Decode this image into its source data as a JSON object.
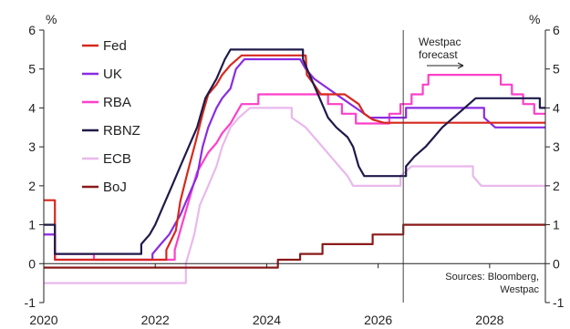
{
  "chart_data": {
    "type": "line",
    "title": "",
    "xlabel": "",
    "ylabel_left": "%",
    "ylabel_right": "%",
    "xlim": [
      2020.0,
      2029.0
    ],
    "ylim": [
      -1,
      6
    ],
    "x_ticks": [
      2020,
      2022,
      2024,
      2026,
      2028
    ],
    "y_ticks": [
      -1,
      0,
      1,
      2,
      3,
      4,
      5,
      6
    ],
    "grid": false,
    "legend_position": "left",
    "forecast_divider_x": 2026.45,
    "annotation": {
      "text_line1": "Westpac",
      "text_line2": "forecast"
    },
    "source_line1": "Sources: Bloomberg,",
    "source_line2": "Westpac",
    "series": [
      {
        "name": "Fed",
        "color": "#d7281e",
        "points": [
          [
            2020.0,
            1.63
          ],
          [
            2020.2,
            1.63
          ],
          [
            2020.2,
            0.1
          ],
          [
            2022.2,
            0.1
          ],
          [
            2022.2,
            0.35
          ],
          [
            2022.37,
            0.85
          ],
          [
            2022.45,
            1.6
          ],
          [
            2022.58,
            2.35
          ],
          [
            2022.72,
            3.1
          ],
          [
            2022.85,
            3.85
          ],
          [
            2022.95,
            4.35
          ],
          [
            2023.1,
            4.6
          ],
          [
            2023.2,
            4.85
          ],
          [
            2023.35,
            5.1
          ],
          [
            2023.55,
            5.35
          ],
          [
            2024.7,
            5.35
          ],
          [
            2024.72,
            4.85
          ],
          [
            2024.85,
            4.6
          ],
          [
            2024.97,
            4.35
          ],
          [
            2025.4,
            4.35
          ],
          [
            2025.65,
            4.1
          ],
          [
            2025.75,
            3.85
          ],
          [
            2025.9,
            3.7
          ],
          [
            2026.1,
            3.62
          ],
          [
            2029.0,
            3.62
          ]
        ]
      },
      {
        "name": "UK",
        "color": "#8a2be2",
        "points": [
          [
            2020.0,
            0.75
          ],
          [
            2020.2,
            0.75
          ],
          [
            2020.2,
            0.1
          ],
          [
            2021.95,
            0.1
          ],
          [
            2021.95,
            0.25
          ],
          [
            2022.1,
            0.5
          ],
          [
            2022.25,
            0.75
          ],
          [
            2022.35,
            1.0
          ],
          [
            2022.45,
            1.25
          ],
          [
            2022.6,
            1.75
          ],
          [
            2022.75,
            2.25
          ],
          [
            2022.85,
            3.0
          ],
          [
            2022.95,
            3.5
          ],
          [
            2023.1,
            4.0
          ],
          [
            2023.2,
            4.25
          ],
          [
            2023.35,
            4.5
          ],
          [
            2023.45,
            5.0
          ],
          [
            2023.6,
            5.25
          ],
          [
            2024.6,
            5.25
          ],
          [
            2024.7,
            5.0
          ],
          [
            2024.85,
            4.75
          ],
          [
            2025.1,
            4.5
          ],
          [
            2025.35,
            4.25
          ],
          [
            2025.6,
            4.0
          ],
          [
            2025.85,
            3.75
          ],
          [
            2026.5,
            3.75
          ],
          [
            2026.5,
            4.0
          ],
          [
            2027.9,
            4.0
          ],
          [
            2027.9,
            3.75
          ],
          [
            2028.1,
            3.5
          ],
          [
            2029.0,
            3.5
          ]
        ]
      },
      {
        "name": "RBA",
        "color": "#ff3fc8",
        "points": [
          [
            2020.0,
            0.75
          ],
          [
            2020.2,
            0.75
          ],
          [
            2020.2,
            0.25
          ],
          [
            2020.9,
            0.25
          ],
          [
            2020.9,
            0.1
          ],
          [
            2022.35,
            0.1
          ],
          [
            2022.35,
            0.35
          ],
          [
            2022.45,
            0.85
          ],
          [
            2022.55,
            1.35
          ],
          [
            2022.65,
            1.85
          ],
          [
            2022.75,
            2.35
          ],
          [
            2022.85,
            2.6
          ],
          [
            2022.95,
            2.85
          ],
          [
            2023.1,
            3.1
          ],
          [
            2023.2,
            3.35
          ],
          [
            2023.35,
            3.6
          ],
          [
            2023.45,
            3.85
          ],
          [
            2023.55,
            4.1
          ],
          [
            2023.85,
            4.1
          ],
          [
            2023.85,
            4.35
          ],
          [
            2025.1,
            4.35
          ],
          [
            2025.1,
            4.1
          ],
          [
            2025.35,
            4.1
          ],
          [
            2025.35,
            3.85
          ],
          [
            2025.6,
            3.85
          ],
          [
            2025.6,
            3.6
          ],
          [
            2026.2,
            3.6
          ],
          [
            2026.2,
            3.85
          ],
          [
            2026.4,
            3.85
          ],
          [
            2026.4,
            4.1
          ],
          [
            2026.6,
            4.1
          ],
          [
            2026.6,
            4.35
          ],
          [
            2026.8,
            4.35
          ],
          [
            2026.8,
            4.6
          ],
          [
            2026.9,
            4.6
          ],
          [
            2026.9,
            4.85
          ],
          [
            2028.2,
            4.85
          ],
          [
            2028.2,
            4.6
          ],
          [
            2028.4,
            4.6
          ],
          [
            2028.4,
            4.35
          ],
          [
            2028.6,
            4.35
          ],
          [
            2028.6,
            4.1
          ],
          [
            2028.8,
            4.1
          ],
          [
            2028.8,
            3.85
          ],
          [
            2029.0,
            3.85
          ]
        ]
      },
      {
        "name": "RBNZ",
        "color": "#1f1a4a",
        "points": [
          [
            2020.0,
            1.0
          ],
          [
            2020.2,
            1.0
          ],
          [
            2020.2,
            0.25
          ],
          [
            2021.75,
            0.25
          ],
          [
            2021.75,
            0.5
          ],
          [
            2021.9,
            0.75
          ],
          [
            2022.0,
            1.0
          ],
          [
            2022.15,
            1.5
          ],
          [
            2022.3,
            2.0
          ],
          [
            2022.45,
            2.5
          ],
          [
            2022.6,
            3.0
          ],
          [
            2022.75,
            3.5
          ],
          [
            2022.9,
            4.25
          ],
          [
            2023.1,
            4.75
          ],
          [
            2023.25,
            5.25
          ],
          [
            2023.35,
            5.5
          ],
          [
            2024.65,
            5.5
          ],
          [
            2024.65,
            5.25
          ],
          [
            2024.8,
            4.75
          ],
          [
            2024.95,
            4.25
          ],
          [
            2025.1,
            3.75
          ],
          [
            2025.25,
            3.5
          ],
          [
            2025.45,
            3.25
          ],
          [
            2025.55,
            3.0
          ],
          [
            2025.65,
            2.5
          ],
          [
            2025.75,
            2.25
          ],
          [
            2026.5,
            2.25
          ],
          [
            2026.5,
            2.5
          ],
          [
            2026.65,
            2.75
          ],
          [
            2026.85,
            3.0
          ],
          [
            2027.0,
            3.25
          ],
          [
            2027.15,
            3.5
          ],
          [
            2027.35,
            3.75
          ],
          [
            2027.55,
            4.0
          ],
          [
            2027.75,
            4.25
          ],
          [
            2028.9,
            4.25
          ],
          [
            2028.9,
            4.0
          ],
          [
            2029.0,
            4.0
          ]
        ]
      },
      {
        "name": "ECB",
        "color": "#e9b8ec",
        "points": [
          [
            2020.0,
            -0.5
          ],
          [
            2022.55,
            -0.5
          ],
          [
            2022.55,
            0.0
          ],
          [
            2022.7,
            0.75
          ],
          [
            2022.8,
            1.5
          ],
          [
            2022.95,
            2.0
          ],
          [
            2023.1,
            2.5
          ],
          [
            2023.2,
            3.0
          ],
          [
            2023.35,
            3.5
          ],
          [
            2023.5,
            3.75
          ],
          [
            2023.7,
            4.0
          ],
          [
            2024.45,
            4.0
          ],
          [
            2024.45,
            3.75
          ],
          [
            2024.7,
            3.5
          ],
          [
            2024.85,
            3.25
          ],
          [
            2025.0,
            3.0
          ],
          [
            2025.15,
            2.75
          ],
          [
            2025.3,
            2.5
          ],
          [
            2025.45,
            2.25
          ],
          [
            2025.55,
            2.0
          ],
          [
            2026.4,
            2.0
          ],
          [
            2026.4,
            2.25
          ],
          [
            2026.6,
            2.5
          ],
          [
            2027.7,
            2.5
          ],
          [
            2027.7,
            2.25
          ],
          [
            2027.85,
            2.0
          ],
          [
            2029.0,
            2.0
          ]
        ]
      },
      {
        "name": "BoJ",
        "color": "#8b1a1a",
        "points": [
          [
            2020.0,
            -0.1
          ],
          [
            2024.2,
            -0.1
          ],
          [
            2024.2,
            0.1
          ],
          [
            2024.6,
            0.1
          ],
          [
            2024.6,
            0.25
          ],
          [
            2025.0,
            0.25
          ],
          [
            2025.0,
            0.5
          ],
          [
            2025.9,
            0.5
          ],
          [
            2025.9,
            0.75
          ],
          [
            2026.45,
            0.75
          ],
          [
            2026.45,
            1.0
          ],
          [
            2029.0,
            1.0
          ]
        ]
      }
    ]
  }
}
